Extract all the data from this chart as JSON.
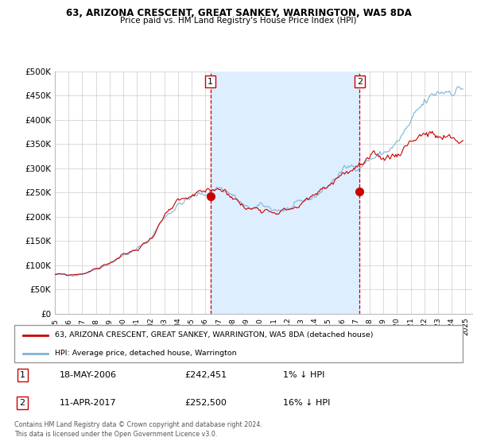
{
  "title": "63, ARIZONA CRESCENT, GREAT SANKEY, WARRINGTON, WA5 8DA",
  "subtitle": "Price paid vs. HM Land Registry's House Price Index (HPI)",
  "ylim": [
    0,
    500000
  ],
  "yticks": [
    0,
    50000,
    100000,
    150000,
    200000,
    250000,
    300000,
    350000,
    400000,
    450000,
    500000
  ],
  "ytick_labels": [
    "£0",
    "£50K",
    "£100K",
    "£150K",
    "£200K",
    "£250K",
    "£300K",
    "£350K",
    "£400K",
    "£450K",
    "£500K"
  ],
  "xlim_start": 1995.0,
  "xlim_end": 2025.5,
  "background_color": "#ffffff",
  "grid_color": "#cccccc",
  "property_color": "#cc0000",
  "hpi_color": "#7eb4d8",
  "shade_color": "#ddeeff",
  "vline_color": "#cc0000",
  "sale1_year": 2006.37,
  "sale1_price": 242451,
  "sale2_year": 2017.27,
  "sale2_price": 252500,
  "legend_property": "63, ARIZONA CRESCENT, GREAT SANKEY, WARRINGTON, WA5 8DA (detached house)",
  "legend_hpi": "HPI: Average price, detached house, Warrington",
  "footer": "Contains HM Land Registry data © Crown copyright and database right 2024.\nThis data is licensed under the Open Government Licence v3.0."
}
